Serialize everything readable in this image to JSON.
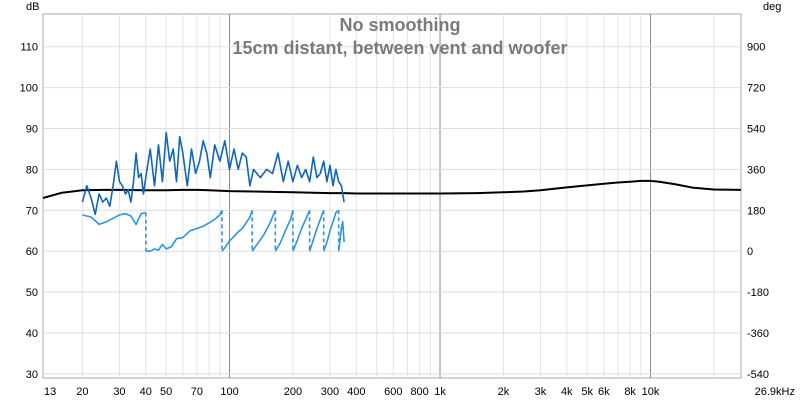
{
  "chart_data": {
    "type": "line",
    "title": "No smoothing",
    "subtitle": "15cm distant, between vent and woofer",
    "y_unit_left": "dB",
    "y_unit_right": "deg",
    "x_scale": "log",
    "xlim": [
      13,
      26900
    ],
    "ylim_left": [
      29,
      118
    ],
    "ylim_right": [
      -558,
      1044
    ],
    "x_ticks": [
      {
        "v": 13,
        "label": "13"
      },
      {
        "v": 20,
        "label": "20"
      },
      {
        "v": 30,
        "label": "30"
      },
      {
        "v": 40,
        "label": "40"
      },
      {
        "v": 50,
        "label": "50"
      },
      {
        "v": 70,
        "label": "70"
      },
      {
        "v": 100,
        "label": "100"
      },
      {
        "v": 200,
        "label": "200"
      },
      {
        "v": 300,
        "label": "300"
      },
      {
        "v": 400,
        "label": "400"
      },
      {
        "v": 600,
        "label": "600"
      },
      {
        "v": 800,
        "label": "800"
      },
      {
        "v": 1000,
        "label": "1k"
      },
      {
        "v": 2000,
        "label": "2k"
      },
      {
        "v": 3000,
        "label": "3k"
      },
      {
        "v": 4000,
        "label": "4k"
      },
      {
        "v": 5000,
        "label": "5k"
      },
      {
        "v": 6000,
        "label": "6k"
      },
      {
        "v": 8000,
        "label": "8k"
      },
      {
        "v": 10000,
        "label": "10k"
      },
      {
        "v": 26900,
        "label": "26.9kHz"
      }
    ],
    "y_ticks_left": [
      {
        "v": 30,
        "label": "30"
      },
      {
        "v": 40,
        "label": "40"
      },
      {
        "v": 50,
        "label": "50"
      },
      {
        "v": 60,
        "label": "60"
      },
      {
        "v": 70,
        "label": "70"
      },
      {
        "v": 80,
        "label": "80"
      },
      {
        "v": 90,
        "label": "90"
      },
      {
        "v": 100,
        "label": "100"
      },
      {
        "v": 110,
        "label": "110"
      }
    ],
    "y_ticks_right": [
      {
        "v": -540,
        "label": "-540"
      },
      {
        "v": -360,
        "label": "-360"
      },
      {
        "v": -180,
        "label": "-180"
      },
      {
        "v": 0,
        "label": "0"
      },
      {
        "v": 180,
        "label": "180"
      },
      {
        "v": 360,
        "label": "360"
      },
      {
        "v": 540,
        "label": "540"
      },
      {
        "v": 720,
        "label": "720"
      },
      {
        "v": 900,
        "label": "900"
      }
    ],
    "series": [
      {
        "color": "#000000",
        "axis": "left",
        "x": [
          13,
          16,
          20,
          25,
          30,
          40,
          50,
          60,
          70,
          80,
          100,
          130,
          160,
          200,
          250,
          300,
          350,
          400,
          500,
          700,
          1000,
          1500,
          2000,
          2500,
          3000,
          4000,
          5000,
          6000,
          7000,
          8000,
          9000,
          10000,
          11000,
          13000,
          16000,
          20000,
          26900
        ],
        "y": [
          73,
          74.3,
          74.9,
          75,
          75,
          74.9,
          74.9,
          75,
          75,
          74.9,
          74.7,
          74.6,
          74.5,
          74.4,
          74.3,
          74.2,
          74.2,
          74.1,
          74.1,
          74.1,
          74.1,
          74.2,
          74.4,
          74.6,
          74.9,
          75.6,
          76.1,
          76.5,
          76.8,
          77,
          77.2,
          77.2,
          77,
          76.4,
          75.5,
          75.1,
          75
        ]
      },
      {
        "color": "#0f66bb",
        "axis": "left",
        "x": [
          20,
          21,
          22,
          23,
          24,
          25,
          26,
          27,
          28,
          29,
          30,
          31,
          32,
          33,
          34,
          35,
          36,
          37,
          38,
          39,
          40,
          42,
          44,
          46,
          48,
          50,
          52,
          54,
          56,
          58,
          60,
          63,
          66,
          69,
          72,
          75,
          78,
          81,
          85,
          90,
          95,
          100,
          105,
          110,
          115,
          120,
          125,
          130,
          140,
          150,
          160,
          170,
          180,
          190,
          200,
          210,
          220,
          230,
          240,
          250,
          260,
          270,
          280,
          290,
          300,
          310,
          320,
          330,
          340,
          350
        ],
        "y": [
          72,
          76,
          73,
          69,
          74,
          72,
          73,
          71,
          76,
          82,
          77,
          76,
          74,
          75,
          72,
          77,
          84,
          78,
          79,
          74,
          78,
          85,
          76,
          86,
          77,
          89,
          82,
          85,
          77,
          88,
          84,
          76,
          85,
          79,
          82,
          87,
          84,
          78,
          86,
          82,
          87,
          80,
          85,
          80,
          84,
          83,
          76,
          80,
          78,
          80,
          79,
          84,
          77,
          82,
          77,
          81,
          78,
          80,
          77,
          83,
          78,
          79,
          82,
          77,
          81,
          76,
          80,
          77,
          76,
          72
        ]
      },
      {
        "color": "#2b95e0",
        "axis": "right",
        "dashed_wraps": true,
        "x": [
          20,
          22,
          24,
          26,
          28,
          30,
          32,
          34,
          36,
          38,
          40,
          40.1,
          42,
          44,
          46,
          48,
          50,
          53,
          56,
          60,
          65,
          70,
          75,
          80,
          85,
          90,
          92,
          92.1,
          95,
          100,
          105,
          110,
          115,
          120,
          125,
          128,
          128.1,
          135,
          145,
          155,
          165,
          165.1,
          175,
          185,
          195,
          200,
          200.1,
          210,
          220,
          230,
          240,
          240.1,
          250,
          260,
          270,
          280,
          280.1,
          290,
          300,
          310,
          320,
          330,
          330.1,
          335,
          340,
          345,
          350
        ],
        "y": [
          160,
          150,
          118,
          130,
          145,
          160,
          165,
          155,
          118,
          165,
          170,
          0,
          0,
          10,
          5,
          30,
          10,
          20,
          55,
          60,
          90,
          100,
          110,
          125,
          140,
          160,
          180,
          0,
          15,
          45,
          65,
          85,
          100,
          125,
          150,
          180,
          0,
          30,
          70,
          120,
          180,
          0,
          40,
          95,
          140,
          180,
          0,
          50,
          100,
          140,
          180,
          0,
          50,
          100,
          140,
          180,
          0,
          40,
          90,
          130,
          170,
          180,
          0,
          50,
          100,
          130,
          40
        ]
      }
    ]
  }
}
